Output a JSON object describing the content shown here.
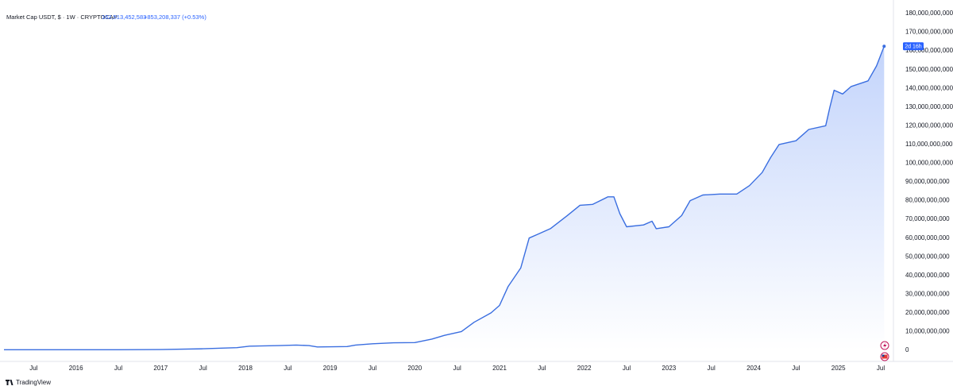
{
  "chart_data": {
    "type": "area",
    "title": "Market Cap USDT, $ · 1W · CRYPTOCAP",
    "last_value_label": "162,513,452,583",
    "change_label": "+853,208,337 (+0.53%)",
    "countdown": "2d 16h",
    "color": "#3a6ee0",
    "grid": false,
    "x": [
      2015.15,
      2016.5,
      2017.0,
      2017.5,
      2017.9,
      2018.05,
      2018.4,
      2018.6,
      2018.75,
      2018.85,
      2019.2,
      2019.3,
      2019.5,
      2019.75,
      2020.0,
      2020.2,
      2020.35,
      2020.55,
      2020.7,
      2020.9,
      2021.0,
      2021.1,
      2021.25,
      2021.35,
      2021.45,
      2021.6,
      2021.8,
      2021.95,
      2022.1,
      2022.28,
      2022.35,
      2022.42,
      2022.5,
      2022.7,
      2022.8,
      2022.85,
      2023.0,
      2023.15,
      2023.25,
      2023.4,
      2023.6,
      2023.8,
      2023.95,
      2024.1,
      2024.2,
      2024.3,
      2024.5,
      2024.65,
      2024.85,
      2024.9,
      2024.95,
      2025.05,
      2025.15,
      2025.35,
      2025.45,
      2025.54
    ],
    "values": [
      300000000,
      300000000,
      400000000,
      800000000,
      1400000000,
      2200000000,
      2500000000,
      2800000000,
      2500000000,
      1800000000,
      2000000000,
      2800000000,
      3500000000,
      4000000000,
      4100000000,
      6000000000,
      8000000000,
      10000000000,
      15000000000,
      20000000000,
      24000000000,
      34000000000,
      44000000000,
      60000000000,
      62000000000,
      65000000000,
      72000000000,
      77500000000,
      78000000000,
      82000000000,
      82000000000,
      73000000000,
      66000000000,
      67000000000,
      69000000000,
      65000000000,
      66000000000,
      72000000000,
      80000000000,
      83000000000,
      83500000000,
      83500000000,
      88000000000,
      95000000000,
      103000000000,
      110000000000,
      112000000000,
      118000000000,
      120000000000,
      130000000000,
      139000000000,
      137000000000,
      141000000000,
      144000000000,
      152000000000,
      162513452583
    ],
    "xlim": [
      2015.15,
      2025.65
    ],
    "xticks": [
      {
        "value": 2015.5,
        "label": "Jul"
      },
      2016,
      {
        "value": 2016.5,
        "label": "Jul"
      },
      2017,
      {
        "value": 2017.5,
        "label": "Jul"
      },
      2018,
      {
        "value": 2018.5,
        "label": "Jul"
      },
      2019,
      {
        "value": 2019.5,
        "label": "Jul"
      },
      2020,
      {
        "value": 2020.5,
        "label": "Jul"
      },
      2021,
      {
        "value": 2021.5,
        "label": "Jul"
      },
      2022,
      {
        "value": 2022.5,
        "label": "Jul"
      },
      2023,
      {
        "value": 2023.5,
        "label": "Jul"
      },
      2024,
      {
        "value": 2024.5,
        "label": "Jul"
      },
      2025,
      {
        "value": 2025.5,
        "label": "Jul"
      }
    ],
    "ylim": [
      0,
      180000000000
    ],
    "yticks": [
      0,
      {
        "value": 10000000000,
        "label": "10,000,000,000"
      },
      {
        "value": 20000000000,
        "label": "20,000,000,000"
      },
      {
        "value": 30000000000,
        "label": "30,000,000,000"
      },
      {
        "value": 40000000000,
        "label": "40,000,000,000"
      },
      {
        "value": 50000000000,
        "label": "50,000,000,000"
      },
      {
        "value": 60000000000,
        "label": "60,000,000,000"
      },
      {
        "value": 70000000000,
        "label": "70,000,000,000"
      },
      {
        "value": 80000000000,
        "label": "80,000,000,000"
      },
      {
        "value": 90000000000,
        "label": "90,000,000,000"
      },
      {
        "value": 100000000000,
        "label": "100,000,000,000"
      },
      {
        "value": 110000000000,
        "label": "110,000,000,000"
      },
      {
        "value": 120000000000,
        "label": "120,000,000,000"
      },
      {
        "value": 130000000000,
        "label": "130,000,000,000"
      },
      {
        "value": 140000000000,
        "label": "140,000,000,000"
      },
      {
        "value": 150000000000,
        "label": "150,000,000,000"
      },
      {
        "value": 160000000000,
        "label": "160,000,000,000"
      },
      {
        "value": 170000000000,
        "label": "170,000,000,000"
      },
      {
        "value": 180000000000,
        "label": "180,000,000,000"
      }
    ]
  },
  "footer": {
    "brand": "TradingView"
  }
}
